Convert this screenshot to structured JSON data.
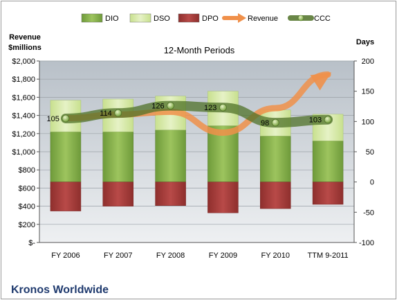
{
  "chart_data": {
    "type": "bar",
    "title": "12-Month Periods",
    "company": "Kronos Worldwide",
    "left_axis": {
      "label_line1": "Revenue",
      "label_line2": "$millions",
      "range": [
        0,
        2000
      ],
      "ticks": [
        0,
        200,
        400,
        600,
        800,
        1000,
        1200,
        1400,
        1600,
        1800,
        2000
      ],
      "tick_labels": [
        "$-",
        "$200",
        "$400",
        "$600",
        "$800",
        "$1,000",
        "$1,200",
        "$1,400",
        "$1,600",
        "$1,800",
        "$2,000"
      ]
    },
    "right_axis": {
      "label": "Days",
      "range": [
        -100,
        200
      ],
      "ticks": [
        -100,
        -50,
        0,
        50,
        100,
        150,
        200
      ],
      "tick_labels": [
        "-100",
        "-50",
        "0",
        "50",
        "100",
        "150",
        "200"
      ]
    },
    "categories": [
      "FY 2006",
      "FY 2007",
      "FY 2008",
      "FY 2009",
      "FY 2010",
      "TTM 9-2011"
    ],
    "legend": [
      {
        "name": "DIO",
        "kind": "bar",
        "color": "#6e9a3a"
      },
      {
        "name": "DSO",
        "kind": "bar",
        "color": "#d9ebb0"
      },
      {
        "name": "DPO",
        "kind": "bar",
        "color": "#b84a48"
      },
      {
        "name": "Revenue",
        "kind": "arrow",
        "color": "#f0904a"
      },
      {
        "name": "CCC",
        "kind": "line",
        "color": "#4f7228"
      }
    ],
    "series": [
      {
        "name": "DIO",
        "axis": "right",
        "values": [
          83,
          83,
          86,
          93,
          76,
          68
        ]
      },
      {
        "name": "DSO",
        "axis": "right",
        "values": [
          52,
          54,
          56,
          57,
          43,
          44
        ]
      },
      {
        "name": "DPO",
        "axis": "right",
        "values": [
          -48,
          -40,
          -39,
          -51,
          -44,
          -37
        ]
      },
      {
        "name": "CCC",
        "axis": "right",
        "values": [
          105,
          114,
          126,
          123,
          98,
          103
        ]
      },
      {
        "name": "Revenue",
        "axis": "left",
        "values": [
          1370,
          1410,
          1440,
          1210,
          1480,
          1850
        ]
      }
    ],
    "data_labels": [
      "105",
      "114",
      "126",
      "123",
      "98",
      "103"
    ],
    "colors": {
      "dio": "#6e9a3a",
      "dio_light": "#9dc45e",
      "dso": "#d9ebb0",
      "dpo": "#b84a48",
      "dpo_dark": "#8e2f2d",
      "revenue": "#f0904a",
      "ccc": "#4f7228",
      "ccc_marker": "#8fb84e",
      "plot_bg_top": "#b8c0c8",
      "plot_bg_bottom": "#eef0f2"
    }
  }
}
